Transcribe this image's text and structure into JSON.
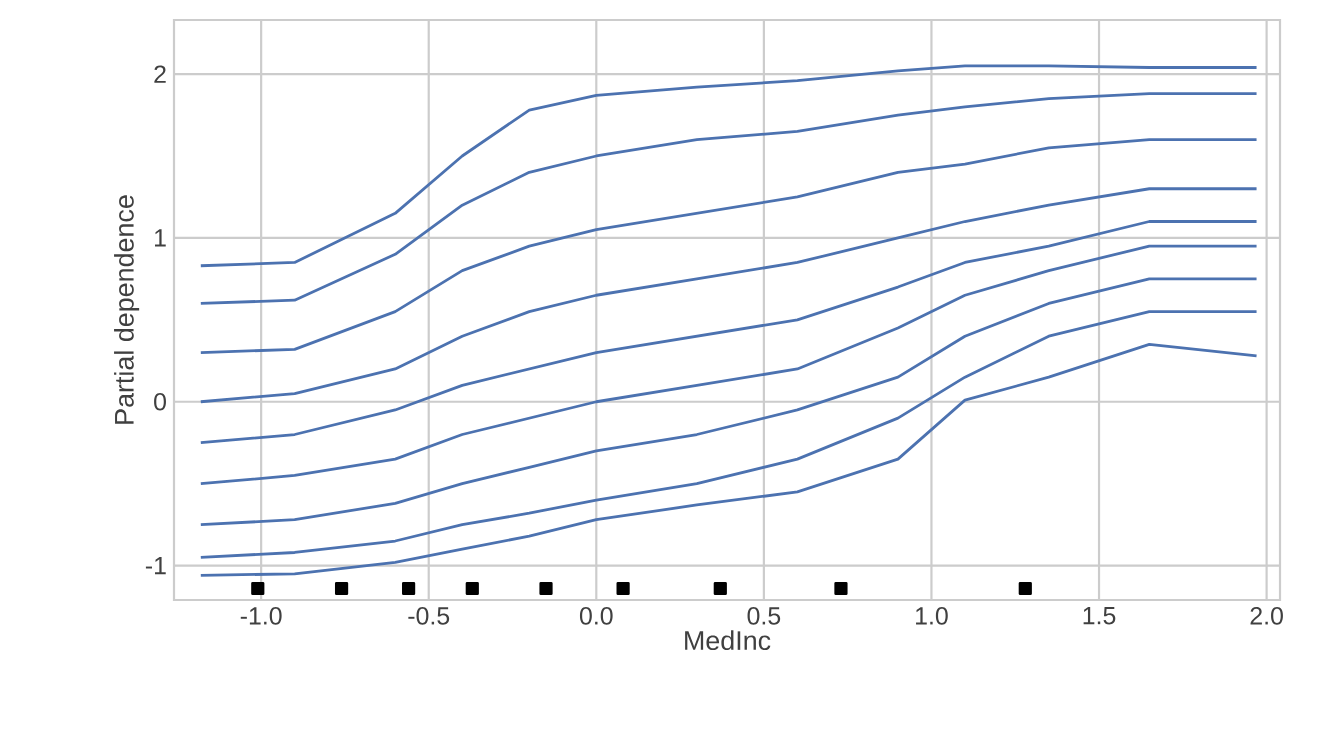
{
  "chart_data": {
    "type": "line",
    "xlabel": "MedInc",
    "ylabel": "Partial dependence",
    "xlim": [
      -1.26,
      2.04
    ],
    "ylim": [
      -1.21,
      2.33
    ],
    "xticks": [
      {
        "value": -1.0,
        "label": "-1.0"
      },
      {
        "value": -0.5,
        "label": "-0.5"
      },
      {
        "value": 0.0,
        "label": "0.0"
      },
      {
        "value": 0.5,
        "label": "0.5"
      },
      {
        "value": 1.0,
        "label": "1.0"
      },
      {
        "value": 1.5,
        "label": "1.5"
      },
      {
        "value": 2.0,
        "label": "2.0"
      }
    ],
    "yticks": [
      -1,
      0,
      1,
      2
    ],
    "grid": true,
    "x": [
      -1.18,
      -0.9,
      -0.6,
      -0.4,
      -0.2,
      0.0,
      0.3,
      0.6,
      0.9,
      1.1,
      1.35,
      1.65,
      1.97
    ],
    "series": [
      {
        "color": "#4c72b0",
        "values": [
          0.83,
          0.85,
          1.15,
          1.5,
          1.78,
          1.87,
          1.92,
          1.96,
          2.02,
          2.05,
          2.05,
          2.04,
          2.04
        ]
      },
      {
        "color": "#4c72b0",
        "values": [
          0.6,
          0.62,
          0.9,
          1.2,
          1.4,
          1.5,
          1.6,
          1.65,
          1.75,
          1.8,
          1.85,
          1.88,
          1.88
        ]
      },
      {
        "color": "#4c72b0",
        "values": [
          0.3,
          0.32,
          0.55,
          0.8,
          0.95,
          1.05,
          1.15,
          1.25,
          1.4,
          1.45,
          1.55,
          1.6,
          1.6
        ]
      },
      {
        "color": "#4c72b0",
        "values": [
          0.0,
          0.05,
          0.2,
          0.4,
          0.55,
          0.65,
          0.75,
          0.85,
          1.0,
          1.1,
          1.2,
          1.3,
          1.3
        ]
      },
      {
        "color": "#4c72b0",
        "values": [
          -0.25,
          -0.2,
          -0.05,
          0.1,
          0.2,
          0.3,
          0.4,
          0.5,
          0.7,
          0.85,
          0.95,
          1.1,
          1.1
        ]
      },
      {
        "color": "#4c72b0",
        "values": [
          -0.5,
          -0.45,
          -0.35,
          -0.2,
          -0.1,
          0.0,
          0.1,
          0.2,
          0.45,
          0.65,
          0.8,
          0.95,
          0.95
        ]
      },
      {
        "color": "#4c72b0",
        "values": [
          -0.75,
          -0.72,
          -0.62,
          -0.5,
          -0.4,
          -0.3,
          -0.2,
          -0.05,
          0.15,
          0.4,
          0.6,
          0.75,
          0.75
        ]
      },
      {
        "color": "#4c72b0",
        "values": [
          -0.95,
          -0.92,
          -0.85,
          -0.75,
          -0.68,
          -0.6,
          -0.5,
          -0.35,
          -0.1,
          0.15,
          0.4,
          0.55,
          0.55
        ]
      },
      {
        "color": "#4c72b0",
        "values": [
          -1.06,
          -1.05,
          -0.98,
          -0.9,
          -0.82,
          -0.72,
          -0.63,
          -0.55,
          -0.35,
          0.01,
          0.15,
          0.35,
          0.28
        ]
      },
      {
        "type": "scatter",
        "color": "#000000",
        "x": [
          -1.01,
          -0.76,
          -0.56,
          -0.37,
          -0.15,
          0.08,
          0.37,
          0.73,
          1.28
        ],
        "values": [
          -1.14,
          -1.14,
          -1.14,
          -1.14,
          -1.14,
          -1.14,
          -1.14,
          -1.14,
          -1.14
        ]
      }
    ]
  }
}
